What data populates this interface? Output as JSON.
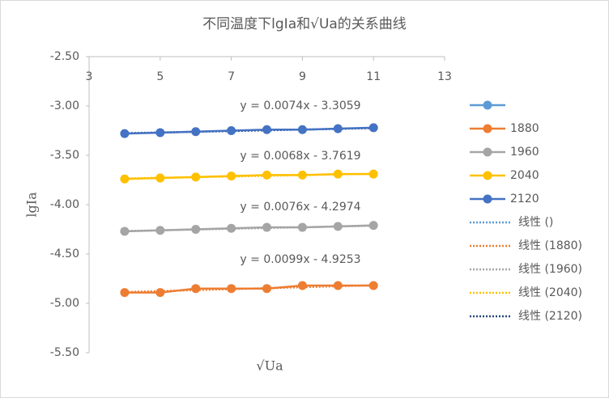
{
  "chart_data": {
    "type": "scatter-line",
    "title": "不同温度下lgIa和√Ua的关系曲线",
    "xlabel": "√Ua",
    "ylabel": "lgIa",
    "xlim": [
      3,
      13
    ],
    "xticks": [
      3,
      5,
      7,
      9,
      11,
      13
    ],
    "ylim": [
      -5.5,
      -2.5
    ],
    "yticks": [
      {
        "value": -2.5,
        "label": "-2.50"
      },
      {
        "value": -3,
        "label": "-3.00"
      },
      {
        "value": -3.5,
        "label": "-3.50"
      },
      {
        "value": -4,
        "label": "-4.00"
      },
      {
        "value": -4.5,
        "label": "-4.50"
      },
      {
        "value": -5,
        "label": "-5.00"
      },
      {
        "value": -5.5,
        "label": "-5.50"
      }
    ],
    "grid": false,
    "legend": "right",
    "x": [
      4,
      5,
      6,
      7,
      8,
      9,
      10,
      11
    ],
    "series": [
      {
        "color": "#5b9bd5",
        "values": []
      },
      {
        "name": "1880",
        "color": "#ed7d31",
        "values": [
          -4.89,
          -4.89,
          -4.85,
          -4.85,
          -4.85,
          -4.82,
          -4.82,
          -4.82
        ]
      },
      {
        "name": "1960",
        "color": "#a5a5a5",
        "values": [
          -4.27,
          -4.26,
          -4.25,
          -4.24,
          -4.23,
          -4.23,
          -4.22,
          -4.21
        ]
      },
      {
        "name": "2040",
        "color": "#ffc000",
        "values": [
          -3.74,
          -3.73,
          -3.72,
          -3.71,
          -3.7,
          -3.7,
          -3.69,
          -3.69
        ]
      },
      {
        "name": "2120",
        "color": "#4472c4",
        "values": [
          -3.28,
          -3.27,
          -3.26,
          -3.25,
          -3.24,
          -3.24,
          -3.23,
          -3.22
        ]
      }
    ],
    "trendlines": [
      {
        "name": "线性 ()",
        "color": "#5b9bd5"
      },
      {
        "name": "线性 (1880)",
        "color": "#ed7d31",
        "equation": "y = 0.0099x - 4.9253",
        "slope": 0.0099,
        "intercept": -4.9253
      },
      {
        "name": "线性 (1960)",
        "color": "#a5a5a5",
        "equation": "y = 0.0076x - 4.2974",
        "slope": 0.0076,
        "intercept": -4.2974
      },
      {
        "name": "线性 (2040)",
        "color": "#ffc000",
        "equation": "y = 0.0068x - 3.7619",
        "slope": 0.0068,
        "intercept": -3.7619
      },
      {
        "name": "线性 (2120)",
        "color": "#264478",
        "equation": "y = 0.0074x - 3.3059",
        "slope": 0.0074,
        "intercept": -3.3059
      }
    ]
  }
}
